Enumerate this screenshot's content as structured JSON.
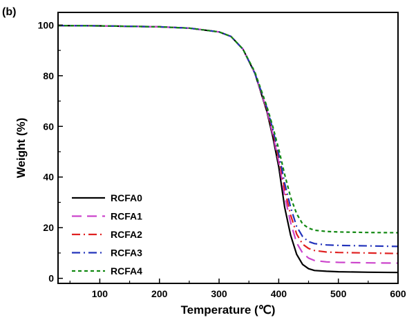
{
  "panel_label": "(b)",
  "chart_data": {
    "type": "line",
    "title": "",
    "xlabel": "Temperature (℃)",
    "ylabel": "Weight (%)",
    "xlim": [
      30,
      600
    ],
    "ylim": [
      -2,
      105
    ],
    "xticks": [
      100,
      200,
      300,
      400,
      500,
      600
    ],
    "yticks": [
      0,
      20,
      40,
      60,
      80,
      100
    ],
    "grid": false,
    "legend_position": "bottom-left",
    "series": [
      {
        "name": "RCFA0",
        "color": "#000000",
        "dash": "solid",
        "x": [
          30,
          100,
          200,
          250,
          300,
          320,
          340,
          360,
          380,
          390,
          400,
          405,
          410,
          420,
          430,
          440,
          450,
          460,
          480,
          500,
          550,
          600
        ],
        "y": [
          99.8,
          99.7,
          99.3,
          98.8,
          97.3,
          95.5,
          90.5,
          81.0,
          66.0,
          56.0,
          44.0,
          36.0,
          28.0,
          17.0,
          9.5,
          5.5,
          3.8,
          3.1,
          2.8,
          2.6,
          2.4,
          2.3
        ]
      },
      {
        "name": "RCFA1",
        "color": "#cc44cc",
        "dash": "long",
        "x": [
          30,
          100,
          200,
          250,
          300,
          320,
          340,
          360,
          380,
          390,
          400,
          405,
          410,
          420,
          430,
          440,
          450,
          460,
          480,
          500,
          550,
          600
        ],
        "y": [
          99.8,
          99.7,
          99.3,
          98.8,
          97.3,
          95.5,
          90.5,
          81.0,
          66.5,
          57.0,
          46.0,
          39.5,
          32.5,
          22.0,
          14.0,
          10.0,
          8.0,
          7.0,
          6.5,
          6.3,
          6.1,
          6.0
        ]
      },
      {
        "name": "RCFA2",
        "color": "#e02020",
        "dash": "dashdot",
        "x": [
          30,
          100,
          200,
          250,
          300,
          320,
          340,
          360,
          380,
          390,
          400,
          405,
          410,
          420,
          430,
          440,
          450,
          460,
          480,
          500,
          550,
          600
        ],
        "y": [
          99.8,
          99.7,
          99.3,
          98.8,
          97.3,
          95.5,
          90.5,
          81.0,
          67.0,
          58.0,
          47.5,
          41.5,
          35.0,
          25.0,
          17.5,
          13.5,
          11.8,
          11.0,
          10.4,
          10.2,
          10.0,
          9.8
        ]
      },
      {
        "name": "RCFA3",
        "color": "#2233bb",
        "dash": "dashdot",
        "x": [
          30,
          100,
          200,
          250,
          300,
          320,
          340,
          360,
          380,
          390,
          400,
          405,
          410,
          420,
          430,
          440,
          450,
          460,
          480,
          500,
          550,
          600
        ],
        "y": [
          99.8,
          99.7,
          99.3,
          98.8,
          97.3,
          95.5,
          90.5,
          81.0,
          67.5,
          59.0,
          49.0,
          43.5,
          37.5,
          28.0,
          20.5,
          16.5,
          14.5,
          13.7,
          13.2,
          13.0,
          12.8,
          12.6
        ]
      },
      {
        "name": "RCFA4",
        "color": "#118811",
        "dash": "short",
        "x": [
          30,
          100,
          200,
          250,
          300,
          320,
          340,
          360,
          380,
          390,
          400,
          405,
          410,
          420,
          430,
          440,
          450,
          460,
          480,
          500,
          550,
          600
        ],
        "y": [
          99.8,
          99.7,
          99.3,
          98.8,
          97.3,
          95.5,
          90.5,
          81.5,
          68.0,
          60.0,
          51.0,
          46.0,
          41.0,
          32.0,
          25.5,
          21.5,
          19.8,
          19.0,
          18.5,
          18.3,
          18.1,
          18.0
        ]
      }
    ]
  }
}
